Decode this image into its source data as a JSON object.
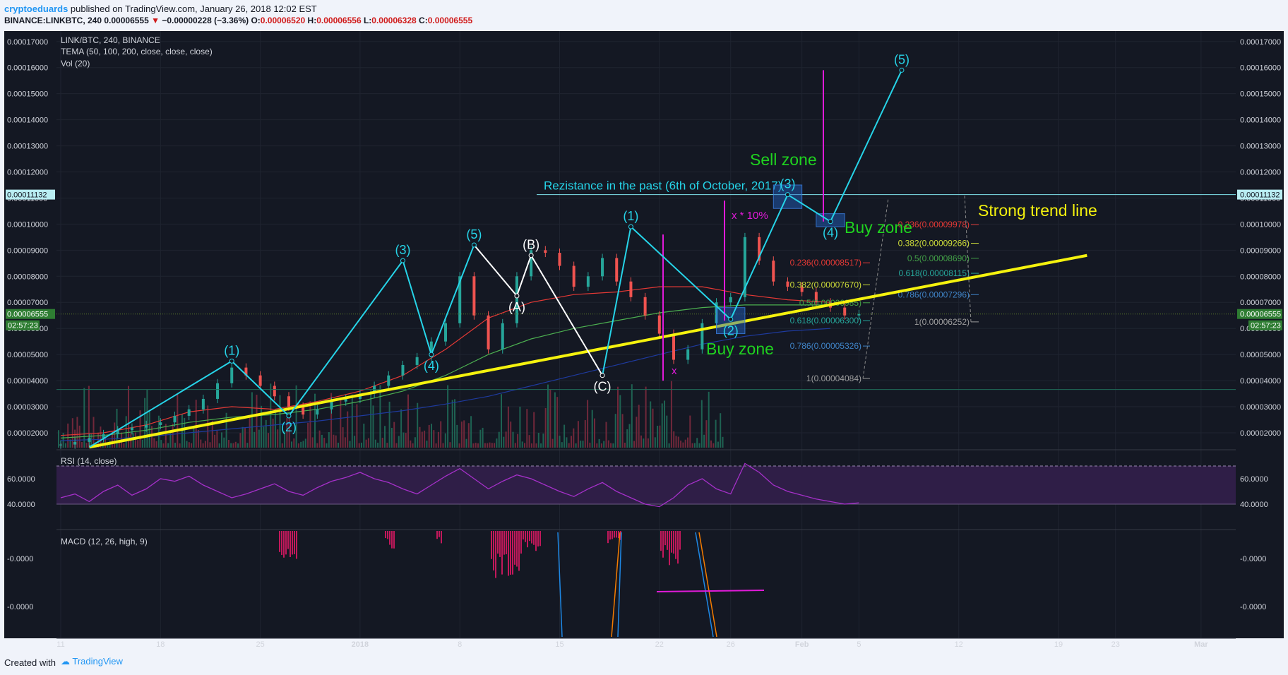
{
  "header": {
    "author": "cryptoeduards",
    "published": " published on TradingView.com, January 26, 2018 12:02 EST",
    "symbol": "BINANCE:LINKBTC, 240",
    "last": "0.00006555",
    "change": "−0.00000228 (−3.36%)",
    "o_label": "O:",
    "o_value": "0.00006520",
    "h_label": "H:",
    "h_value": "0.00006556",
    "l_label": "L:",
    "l_value": "0.00006328",
    "c_label": "C:",
    "c_value": "0.00006555"
  },
  "footer": {
    "created": "Created with",
    "brand": "TradingView"
  },
  "colors": {
    "background": "#141823",
    "accent_cyan": "#26d4e8",
    "trend_yellow": "#f5f20e",
    "magenta": "#e01ad8",
    "green_text": "#1fd31f",
    "up_candle": "#26a69a",
    "down_candle": "#ef5350",
    "rsi_band": "#2f1e47",
    "rsi_line": "#a530c9"
  },
  "chart_data": {
    "type": "line",
    "title": "LINK/BTC, 240, BINANCE",
    "studies": [
      "TEMA (50, 100, 200, close, close, close)",
      "Vol (20)"
    ],
    "price_axis_ticks": [
      "0.00017000",
      "0.00016000",
      "0.00015000",
      "0.00014000",
      "0.00013000",
      "0.00012000",
      "0.00011000",
      "0.00010000",
      "0.00009000",
      "0.00008000",
      "0.00007000",
      "0.00006000",
      "0.00005000",
      "0.00004000",
      "0.00003000",
      "0.00002000"
    ],
    "ylim": [
      1.35e-05,
      0.000174
    ],
    "current_price": "0.00006555",
    "countdown": "02:57:23",
    "resistance_price": "0.00011132",
    "x_axis_ticks": [
      "11",
      "18",
      "25",
      "2018",
      "8",
      "15",
      "22",
      "26",
      "Feb",
      "5",
      "12",
      "19",
      "23",
      "Mar"
    ],
    "price_series": {
      "x_start": "2017-12-11",
      "step_days": 1,
      "values": [
        1.55e-05,
        1.65e-05,
        1.8e-05,
        1.95e-05,
        2.1e-05,
        2.2e-05,
        2.3e-05,
        2.4e-05,
        2.65e-05,
        2.9e-05,
        3.3e-05,
        3.9e-05,
        4.5e-05,
        4.2e-05,
        3.8e-05,
        3.4e-05,
        3e-05,
        2.7e-05,
        2.9e-05,
        3.2e-05,
        3.3e-05,
        3.5e-05,
        3.8e-05,
        4.2e-05,
        4.6e-05,
        4.9e-05,
        5.5e-05,
        6.2e-05,
        8e-05,
        6.5e-05,
        5.2e-05,
        6.2e-05,
        8e-05,
        9e-05,
        8.9e-05,
        8.4e-05,
        7.6e-05,
        8e-05,
        8.7e-05,
        7.8e-05,
        7.2e-05,
        6.5e-05,
        5.8e-05,
        4.8e-05,
        5.2e-05,
        6.2e-05,
        7e-05,
        7.2e-05,
        9.5e-05,
        8.6e-05,
        7.8e-05,
        7.6e-05,
        7.4e-05,
        7e-05,
        6.8e-05,
        6.5e-05,
        6.55e-05
      ]
    },
    "tema_series": [
      {
        "name": "TEMA 50",
        "color": "#e53935",
        "x_start": "2017-12-11",
        "step_days": 3,
        "values": [
          1.9e-05,
          2e-05,
          2.3e-05,
          2.8e-05,
          3e-05,
          2.9e-05,
          3.2e-05,
          3.6e-05,
          4.2e-05,
          5.2e-05,
          6.4e-05,
          7e-05,
          7.3e-05,
          7.4e-05,
          7.6e-05,
          7.6e-05,
          7.3e-05,
          7.1e-05,
          7e-05
        ]
      },
      {
        "name": "TEMA 100",
        "color": "#4caf50",
        "x_start": "2017-12-11",
        "step_days": 3,
        "values": [
          1.8e-05,
          1.9e-05,
          2.1e-05,
          2.4e-05,
          2.6e-05,
          2.7e-05,
          2.9e-05,
          3.2e-05,
          3.6e-05,
          4.2e-05,
          5e-05,
          5.6e-05,
          6e-05,
          6.3e-05,
          6.6e-05,
          6.8e-05,
          6.9e-05,
          6.9e-05,
          6.9e-05
        ]
      },
      {
        "name": "TEMA 200",
        "color": "#1e3a9e",
        "x_start": "2017-12-11",
        "step_days": 3,
        "values": [
          1.7e-05,
          1.75e-05,
          1.85e-05,
          2e-05,
          2.15e-05,
          2.3e-05,
          2.45e-05,
          2.65e-05,
          2.85e-05,
          3.1e-05,
          3.4e-05,
          3.8e-05,
          4.2e-05,
          4.6e-05,
          5e-05,
          5.4e-05,
          5.7e-05,
          5.9e-05,
          6e-05
        ]
      }
    ],
    "elliott_waves": [
      {
        "label": "(1)",
        "x": "2017-12-23",
        "y": 4.75e-05
      },
      {
        "label": "(2)",
        "x": "2017-12-27",
        "y": 2.65e-05
      },
      {
        "label": "(3)",
        "x": "2018-01-04",
        "y": 8.6e-05
      },
      {
        "label": "(4)",
        "x": "2018-01-06",
        "y": 5e-05
      },
      {
        "label": "(5)",
        "x": "2018-01-09",
        "y": 9.2e-05
      },
      {
        "label": "(A)",
        "x": "2018-01-12",
        "y": 7.25e-05
      },
      {
        "label": "(B)",
        "x": "2018-01-13",
        "y": 8.8e-05
      },
      {
        "label": "(C)",
        "x": "2018-01-18",
        "y": 4.2e-05
      },
      {
        "label": "(1)",
        "x": "2018-01-20",
        "y": 9.9e-05
      },
      {
        "label": "(2)",
        "x": "2018-01-27",
        "y": 6.35e-05
      },
      {
        "label": "(3)",
        "x": "2018-01-31",
        "y": 0.0001113
      },
      {
        "label": "(4)",
        "x": "2018-02-03",
        "y": 0.000101
      },
      {
        "label": "(5)",
        "x": "2018-02-08",
        "y": 0.000159
      }
    ],
    "trend_line": {
      "label": "Strong trend line",
      "from": {
        "x": "2017-12-13",
        "y": 1.45e-05
      },
      "to": {
        "x": "2018-02-21",
        "y": 8.8e-05
      }
    },
    "annotations": {
      "resistance": "Rezistance in the past (6th of October, 2017)",
      "sell_zone": "Sell zone",
      "buy_zone": "Buy zone",
      "x_label": "x",
      "x10_label": "x * 10%"
    },
    "fib_retracement_1": [
      {
        "label": "0.236(0.00008517)",
        "y": 8.517e-05,
        "color": "#e53935"
      },
      {
        "label": "0.382(0.00007670)",
        "y": 7.67e-05,
        "color": "#cddc39"
      },
      {
        "label": "0.5(0.00006985)",
        "y": 6.985e-05,
        "color": "#43a047"
      },
      {
        "label": "0.618(0.00006300)",
        "y": 6.3e-05,
        "color": "#26a69a"
      },
      {
        "label": "0.786(0.00005326)",
        "y": 5.326e-05,
        "color": "#3f83c6"
      },
      {
        "label": "1(0.00004084)",
        "y": 4.084e-05,
        "color": "#9e9e9e"
      }
    ],
    "fib_retracement_2": [
      {
        "label": "0.236(0.00009978)",
        "y": 9.978e-05,
        "color": "#e53935"
      },
      {
        "label": "0.382(0.00009266)",
        "y": 9.266e-05,
        "color": "#cddc39"
      },
      {
        "label": "0.5(0.00008690)",
        "y": 8.69e-05,
        "color": "#43a047"
      },
      {
        "label": "0.618(0.00008115)",
        "y": 8.115e-05,
        "color": "#26a69a"
      },
      {
        "label": "0.786(0.00007296)",
        "y": 7.296e-05,
        "color": "#3f83c6"
      },
      {
        "label": "1(0.00006252)",
        "y": 6.252e-05,
        "color": "#9e9e9e"
      }
    ],
    "rsi": {
      "title": "RSI (14, close)",
      "ticks": [
        "60.0000",
        "40.0000"
      ],
      "band": [
        40,
        70
      ],
      "values": [
        45,
        48,
        42,
        50,
        55,
        47,
        52,
        60,
        58,
        62,
        55,
        50,
        45,
        48,
        52,
        56,
        50,
        47,
        53,
        58,
        61,
        65,
        60,
        57,
        52,
        48,
        55,
        62,
        68,
        60,
        52,
        58,
        63,
        60,
        55,
        50,
        46,
        52,
        57,
        50,
        45,
        40,
        38,
        45,
        55,
        60,
        52,
        48,
        72,
        65,
        55,
        50,
        47,
        44,
        42,
        40,
        41
      ]
    },
    "macd": {
      "title": "MACD (12, 26, high, 9)",
      "ticks": [
        "-0.0000",
        "-0.0000"
      ]
    }
  }
}
